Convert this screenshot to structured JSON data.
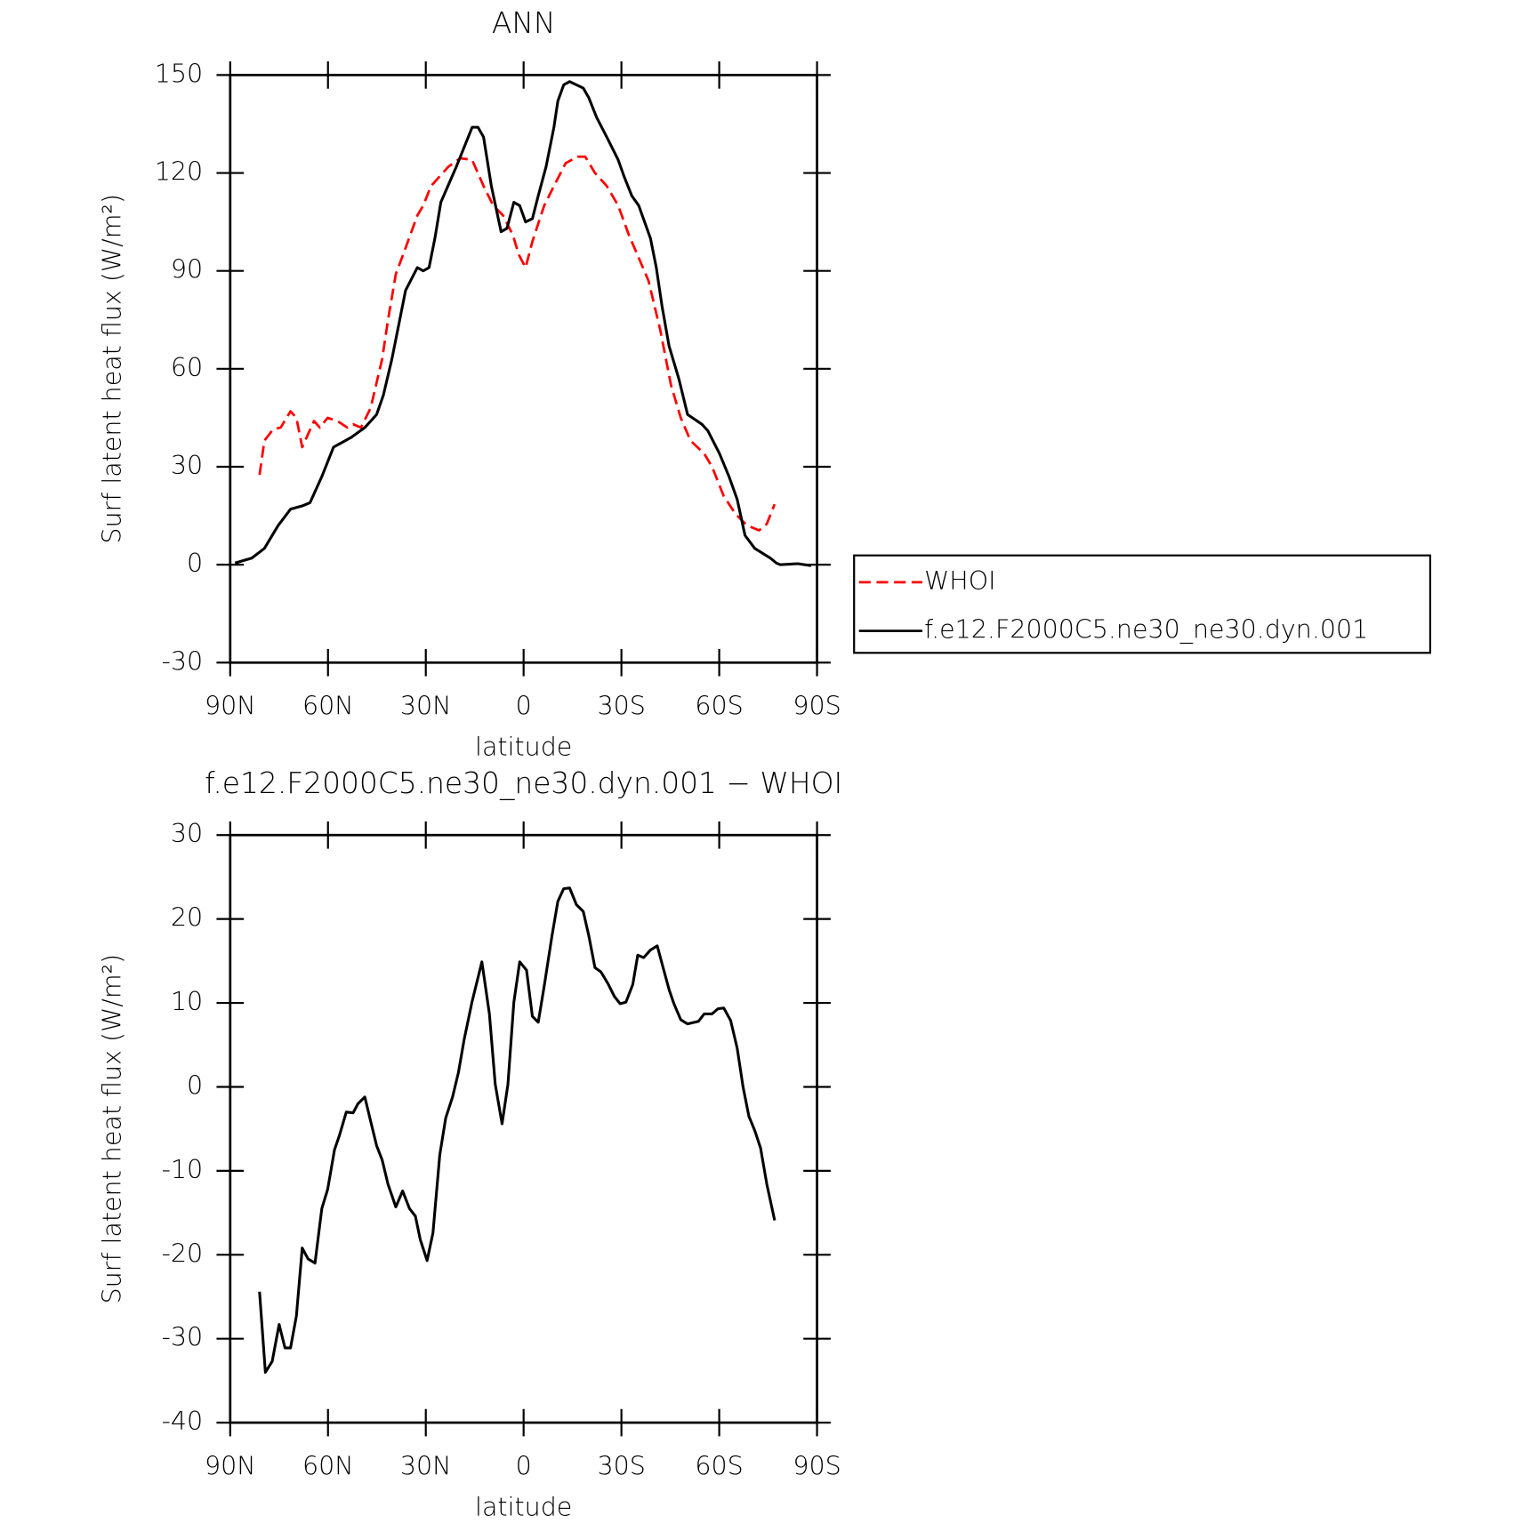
{
  "chart_data": [
    {
      "type": "line",
      "title": "ANN",
      "xlabel": "latitude",
      "ylabel": "Surf latent heat flux (W/m²)",
      "xlim": [
        90,
        -90
      ],
      "ylim": [
        -30,
        150
      ],
      "xticks": [
        {
          "value": 90,
          "label": "90N"
        },
        {
          "value": 60,
          "label": "60N"
        },
        {
          "value": 30,
          "label": "30N"
        },
        0,
        {
          "value": -30,
          "label": "30S"
        },
        {
          "value": -60,
          "label": "60S"
        },
        {
          "value": -90,
          "label": "90S"
        }
      ],
      "yticks": [
        -30,
        0,
        30,
        60,
        90,
        120,
        150
      ],
      "legend": "right",
      "series": [
        {
          "name": "WHOI",
          "color": "#ff0000",
          "line_style": "dashed",
          "x": [
            81,
            79.5,
            76.8,
            74.5,
            71.5,
            69.7,
            67.9,
            66.1,
            64.3,
            62.5,
            60.1,
            57.1,
            54.1,
            52.3,
            49.9,
            46.9,
            43.4,
            41.6,
            39.2,
            36.2,
            32.6,
            30.8,
            28.4,
            23,
            19.4,
            15.8,
            12.3,
            9.3,
            6.3,
            3.3,
            1.5,
            -0.6,
            -2.7,
            -6.3,
            -9.3,
            -12.9,
            -16.5,
            -18.9,
            -21.9,
            -25.5,
            -29,
            -32.3,
            -35.3,
            -38.3,
            -41.9,
            -45.2,
            -48.2,
            -51.2,
            -55.4,
            -57.8,
            -61.4,
            -65,
            -68.6,
            -72.2,
            -74.6,
            -77
          ],
          "values": [
            27.5,
            38,
            41.5,
            42,
            47,
            45,
            36,
            40,
            44,
            42,
            45,
            44,
            42,
            43,
            42,
            48,
            63,
            75,
            89,
            97,
            107,
            110,
            116,
            122,
            124.5,
            124,
            116,
            110,
            107,
            101,
            95,
            91,
            99,
            110,
            116,
            123,
            125,
            125,
            120,
            116,
            110,
            101,
            94,
            87,
            72,
            55,
            45,
            38,
            34,
            30,
            21,
            15.5,
            12,
            10.5,
            12.5,
            18.5
          ]
        },
        {
          "name": "f.e12.F2000C5.ne30_ne30.dyn.001",
          "color": "#000000",
          "line_style": "solid",
          "x": [
            88.5,
            83.4,
            79.5,
            75.3,
            71.5,
            67.9,
            65.5,
            61.9,
            58.3,
            52.9,
            48.7,
            45.1,
            43,
            40.4,
            38,
            36.2,
            32.6,
            30.8,
            29,
            27.2,
            25.4,
            20.6,
            15.8,
            14,
            12.3,
            9.9,
            6.9,
            5.1,
            3,
            1.2,
            -0.6,
            -2.7,
            -4.5,
            -6.9,
            -9.3,
            -10.5,
            -12.3,
            -14.1,
            -18.3,
            -20,
            -22.4,
            -26,
            -29,
            -30.8,
            -33.2,
            -35.3,
            -38.9,
            -40.7,
            -42.5,
            -44.6,
            -47.6,
            -50.3,
            -54.7,
            -56.5,
            -60.1,
            -63,
            -65.5,
            -67.9,
            -70.9,
            -75.7,
            -77.5,
            -78.7,
            -84.1,
            -88.2
          ],
          "values": [
            0.5,
            2,
            5,
            12,
            17,
            18,
            19,
            27,
            36,
            39,
            42,
            46,
            52,
            63,
            75,
            84,
            91,
            90,
            91,
            100,
            111,
            122,
            134,
            134,
            131,
            116,
            102,
            103,
            111,
            110,
            105,
            106,
            113,
            122,
            134,
            142,
            147,
            148,
            146,
            143,
            137,
            130,
            124,
            119,
            113,
            110,
            100,
            91,
            79,
            67,
            57,
            46,
            43,
            41,
            34,
            27,
            20,
            9,
            5,
            2,
            0.5,
            0,
            0.3,
            -0.3
          ]
        }
      ]
    },
    {
      "type": "line",
      "title": "f.e12.F2000C5.ne30_ne30.dyn.001 − WHOI",
      "xlabel": "latitude",
      "ylabel": "Surf latent heat flux (W/m²)",
      "xlim": [
        90,
        -90
      ],
      "ylim": [
        -40,
        30
      ],
      "xticks": [
        {
          "value": 90,
          "label": "90N"
        },
        {
          "value": 60,
          "label": "60N"
        },
        {
          "value": 30,
          "label": "30N"
        },
        0,
        {
          "value": -30,
          "label": "30S"
        },
        {
          "value": -60,
          "label": "60S"
        },
        {
          "value": -90,
          "label": "90S"
        }
      ],
      "yticks": [
        -40,
        -30,
        -20,
        -10,
        0,
        10,
        20,
        30
      ],
      "color": "#000000",
      "x": [
        81,
        79.2,
        77.1,
        75,
        73.2,
        71.5,
        69.7,
        67.9,
        66.1,
        64,
        61.9,
        60.1,
        58,
        56.5,
        54.4,
        52.3,
        50.8,
        48.7,
        46.9,
        45.1,
        43.4,
        41.6,
        39.2,
        37.1,
        35,
        33.2,
        31.7,
        29.6,
        27.8,
        25.7,
        23.9,
        21.8,
        20,
        18.2,
        15.8,
        12.8,
        10.5,
        8.7,
        6.6,
        4.8,
        3,
        1.2,
        -0.9,
        -2.7,
        -4.5,
        -6.3,
        -8.7,
        -10.5,
        -12.3,
        -14.1,
        -16.2,
        -18.3,
        -20,
        -21.9,
        -23.7,
        -26,
        -27.8,
        -29.6,
        -31.4,
        -33.5,
        -35,
        -36.8,
        -38.9,
        -41,
        -42.8,
        -44.6,
        -46.1,
        -48.2,
        -50.3,
        -53.6,
        -55.4,
        -57.8,
        -59.6,
        -61.4,
        -63.5,
        -65.5,
        -67.3,
        -69.1,
        -70.9,
        -72.7,
        -74.6,
        -77
      ],
      "values": [
        -24.4,
        -34,
        -32.7,
        -28.3,
        -31.1,
        -31.1,
        -27.3,
        -19.2,
        -20.5,
        -21,
        -14.5,
        -12.2,
        -7.5,
        -5.8,
        -3,
        -3.1,
        -2,
        -1.2,
        -4.1,
        -7,
        -8.7,
        -11.6,
        -14.3,
        -12.4,
        -14.5,
        -15.4,
        -18.2,
        -20.7,
        -17.4,
        -8.1,
        -3.7,
        -1.2,
        1.7,
        5.7,
        10.2,
        14.9,
        8.7,
        0.3,
        -4.4,
        0.3,
        10.1,
        14.9,
        13.9,
        8.4,
        7.7,
        12,
        18,
        22.1,
        23.6,
        23.7,
        21.7,
        20.9,
        18,
        14.2,
        13.7,
        12.2,
        10.8,
        9.9,
        10.1,
        12.2,
        15.7,
        15.4,
        16.3,
        16.8,
        14.2,
        11.6,
        9.9,
        8,
        7.5,
        7.8,
        8.7,
        8.7,
        9.3,
        9.4,
        7.9,
        4.6,
        0,
        -3.5,
        -5.2,
        -7.3,
        -11.6,
        -15.9
      ]
    }
  ]
}
